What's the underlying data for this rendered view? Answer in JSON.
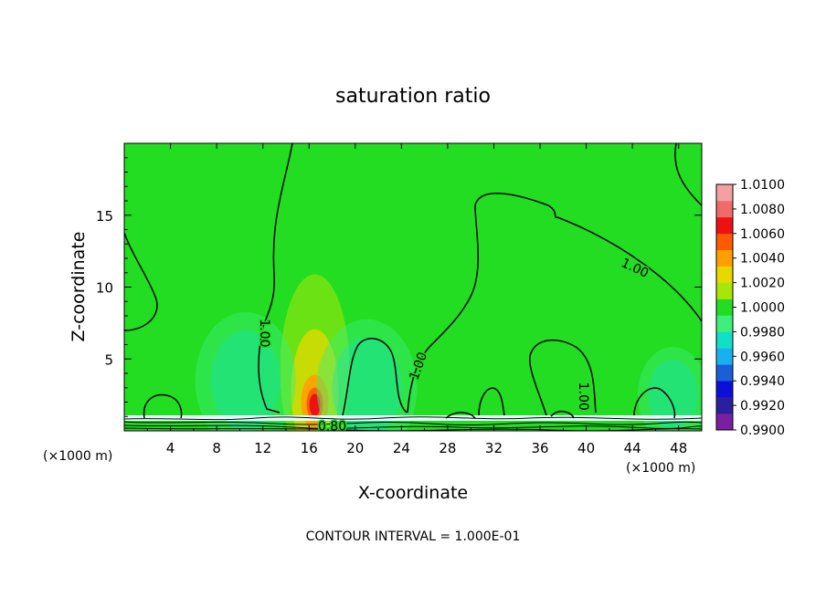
{
  "chart_data": {
    "type": "heatmap",
    "title": "saturation ratio",
    "xlabel": "X-coordinate",
    "ylabel": "Z-coordinate",
    "x_unit": "(×1000 m)",
    "x_unit_right": "(×1000 m)",
    "xlim": [
      0,
      50
    ],
    "ylim": [
      0,
      20
    ],
    "xticks": [
      4,
      8,
      12,
      16,
      20,
      24,
      28,
      32,
      36,
      40,
      44,
      48
    ],
    "yticks": [
      5,
      10,
      15
    ],
    "footer": "CONTOUR INTERVAL = 1.000E-01",
    "colorbar": {
      "colors": [
        "#7a1fa2",
        "#2b1fa0",
        "#0b0fd8",
        "#1a5fd8",
        "#1ab0f0",
        "#10e0c8",
        "#3ef07a",
        "#22dd22",
        "#a8e60a",
        "#e6d800",
        "#ffa000",
        "#ff5a00",
        "#ee1111",
        "#f06a6a",
        "#f4a0a0"
      ],
      "labels": [
        "0.9900",
        "0.9920",
        "0.9940",
        "0.9960",
        "0.9980",
        "1.0000",
        "1.0020",
        "1.0040",
        "1.0060",
        "1.0080",
        "1.0100"
      ]
    },
    "background_value": 1.0,
    "features": [
      {
        "kind": "max",
        "x": 16.5,
        "z": 2.0,
        "value": 1.008
      },
      {
        "kind": "min",
        "x": 10.5,
        "z": 3.5,
        "value": 0.9985
      },
      {
        "kind": "min",
        "x": 21.0,
        "z": 3.0,
        "value": 0.9985
      },
      {
        "kind": "min",
        "x": 47.5,
        "z": 2.5,
        "value": 0.9985
      }
    ],
    "contour_labels": [
      {
        "text": "1.00",
        "x": 12.1,
        "z": 6.8
      },
      {
        "text": "1.00",
        "x": 25.5,
        "z": 4.5
      },
      {
        "text": "1.00",
        "x": 39.7,
        "z": 2.4
      },
      {
        "text": "1.00",
        "x": 44.2,
        "z": 11.3
      },
      {
        "text": "0.80",
        "x": 18.0,
        "z": 0.3
      }
    ]
  }
}
